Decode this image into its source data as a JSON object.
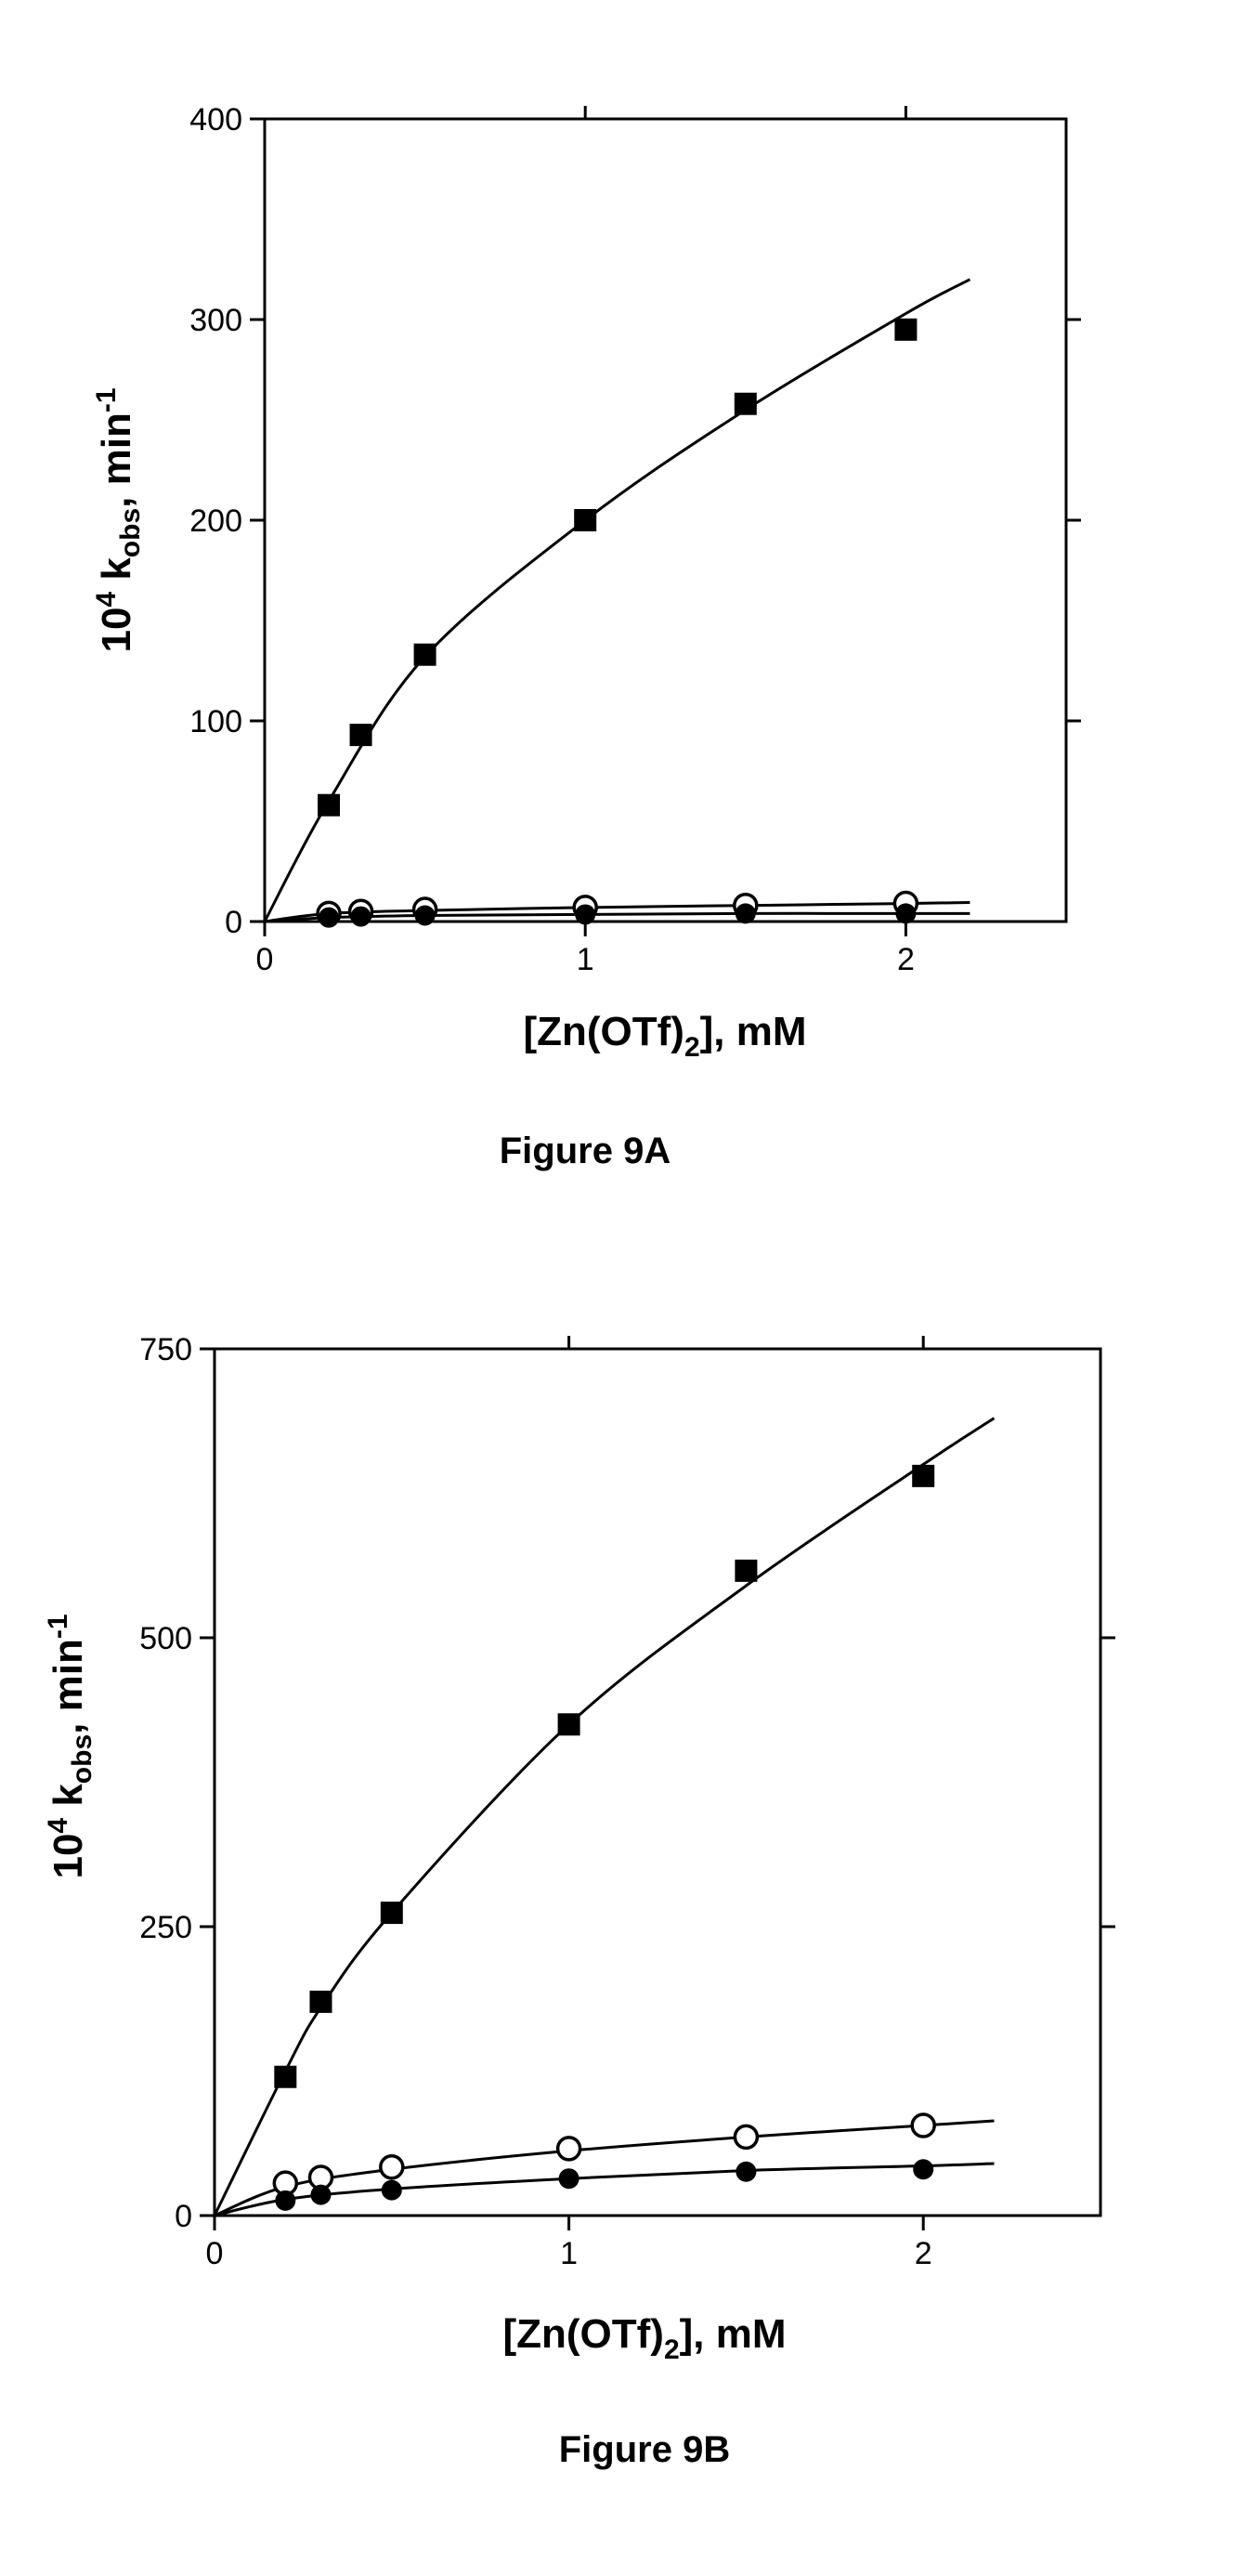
{
  "chart_data": [
    {
      "type": "scatter",
      "caption": "Figure 9A",
      "xlabel": "[Zn(OTf)2], mM",
      "xlabel_parts": {
        "main": "[Zn(OTf)",
        "sub": "2",
        "tail": "], mM"
      },
      "ylabel": "10^4 k_obs, min^-1",
      "ylabel_parts": {
        "a": "10",
        "a_sup": "4",
        "b": " k",
        "b_sub": "obs",
        "c": ", min",
        "c_sup": "-1"
      },
      "xlim": [
        0,
        2.5
      ],
      "ylim": [
        0,
        400
      ],
      "x_ticks": [
        0,
        1,
        2
      ],
      "y_ticks": [
        0,
        100,
        200,
        300,
        400
      ],
      "x_tick_labels": [
        "0",
        "1",
        "2"
      ],
      "y_tick_labels": [
        "0",
        "100",
        "200",
        "300",
        "400"
      ],
      "grid": false,
      "series": [
        {
          "marker": "filled-square",
          "x": [
            0.2,
            0.3,
            0.5,
            1.0,
            1.5,
            2.0
          ],
          "y": [
            58,
            93,
            133,
            200,
            258,
            295
          ],
          "fit_curve": {
            "x": [
              0,
              0.2,
              0.5,
              1.0,
              1.5,
              2.0,
              2.2
            ],
            "y": [
              0,
              60,
              132,
              200,
              255,
              303,
              320
            ]
          }
        },
        {
          "marker": "open-circle",
          "x": [
            0.2,
            0.3,
            0.5,
            1.0,
            1.5,
            2.0
          ],
          "y": [
            4,
            5,
            6,
            7,
            8,
            9
          ],
          "fit_curve": {
            "x": [
              0,
              0.2,
              0.5,
              1.0,
              1.5,
              2.0,
              2.2
            ],
            "y": [
              0,
              4,
              5.5,
              7,
              8,
              9,
              9.5
            ]
          }
        },
        {
          "marker": "filled-circle",
          "x": [
            0.2,
            0.3,
            0.5,
            1.0,
            1.5,
            2.0
          ],
          "y": [
            2,
            2.5,
            3,
            3.5,
            4,
            4
          ],
          "fit_curve": {
            "x": [
              0,
              0.2,
              0.5,
              1.0,
              1.5,
              2.0,
              2.2
            ],
            "y": [
              0,
              2,
              3,
              3.5,
              4,
              4,
              4
            ]
          }
        }
      ]
    },
    {
      "type": "scatter",
      "caption": "Figure 9B",
      "xlabel": "[Zn(OTf)2], mM",
      "xlabel_parts": {
        "main": "[Zn(OTf)",
        "sub": "2",
        "tail": "], mM"
      },
      "ylabel": "10^4 k_obs, min^-1",
      "ylabel_parts": {
        "a": "10",
        "a_sup": "4",
        "b": " k",
        "b_sub": "obs",
        "c": ", min",
        "c_sup": "-1"
      },
      "xlim": [
        0,
        2.5
      ],
      "ylim": [
        0,
        750
      ],
      "x_ticks": [
        0,
        1,
        2
      ],
      "y_ticks": [
        0,
        250,
        500,
        750
      ],
      "x_tick_labels": [
        "0",
        "1",
        "2"
      ],
      "y_tick_labels": [
        "0",
        "250",
        "500",
        "750"
      ],
      "grid": false,
      "series": [
        {
          "marker": "filled-square",
          "x": [
            0.2,
            0.3,
            0.5,
            1.0,
            1.5,
            2.0
          ],
          "y": [
            120,
            185,
            262,
            425,
            558,
            640
          ],
          "fit_curve": {
            "x": [
              0,
              0.2,
              0.3,
              0.5,
              1.0,
              1.5,
              2.0,
              2.2
            ],
            "y": [
              0,
              125,
              180,
              262,
              425,
              545,
              650,
              690
            ]
          }
        },
        {
          "marker": "open-circle",
          "x": [
            0.2,
            0.3,
            0.5,
            1.0,
            1.5,
            2.0
          ],
          "y": [
            28,
            33,
            42,
            58,
            68,
            78
          ],
          "fit_curve": {
            "x": [
              0,
              0.2,
              0.5,
              1.0,
              1.5,
              2.0,
              2.2
            ],
            "y": [
              0,
              25,
              40,
              56,
              68,
              78,
              82
            ]
          }
        },
        {
          "marker": "filled-circle",
          "x": [
            0.2,
            0.3,
            0.5,
            1.0,
            1.5,
            2.0
          ],
          "y": [
            13,
            18,
            22,
            32,
            38,
            40
          ],
          "fit_curve": {
            "x": [
              0,
              0.2,
              0.5,
              1.0,
              1.5,
              2.0,
              2.2
            ],
            "y": [
              0,
              14,
              23,
              32,
              39,
              43,
              45
            ]
          }
        }
      ]
    }
  ]
}
